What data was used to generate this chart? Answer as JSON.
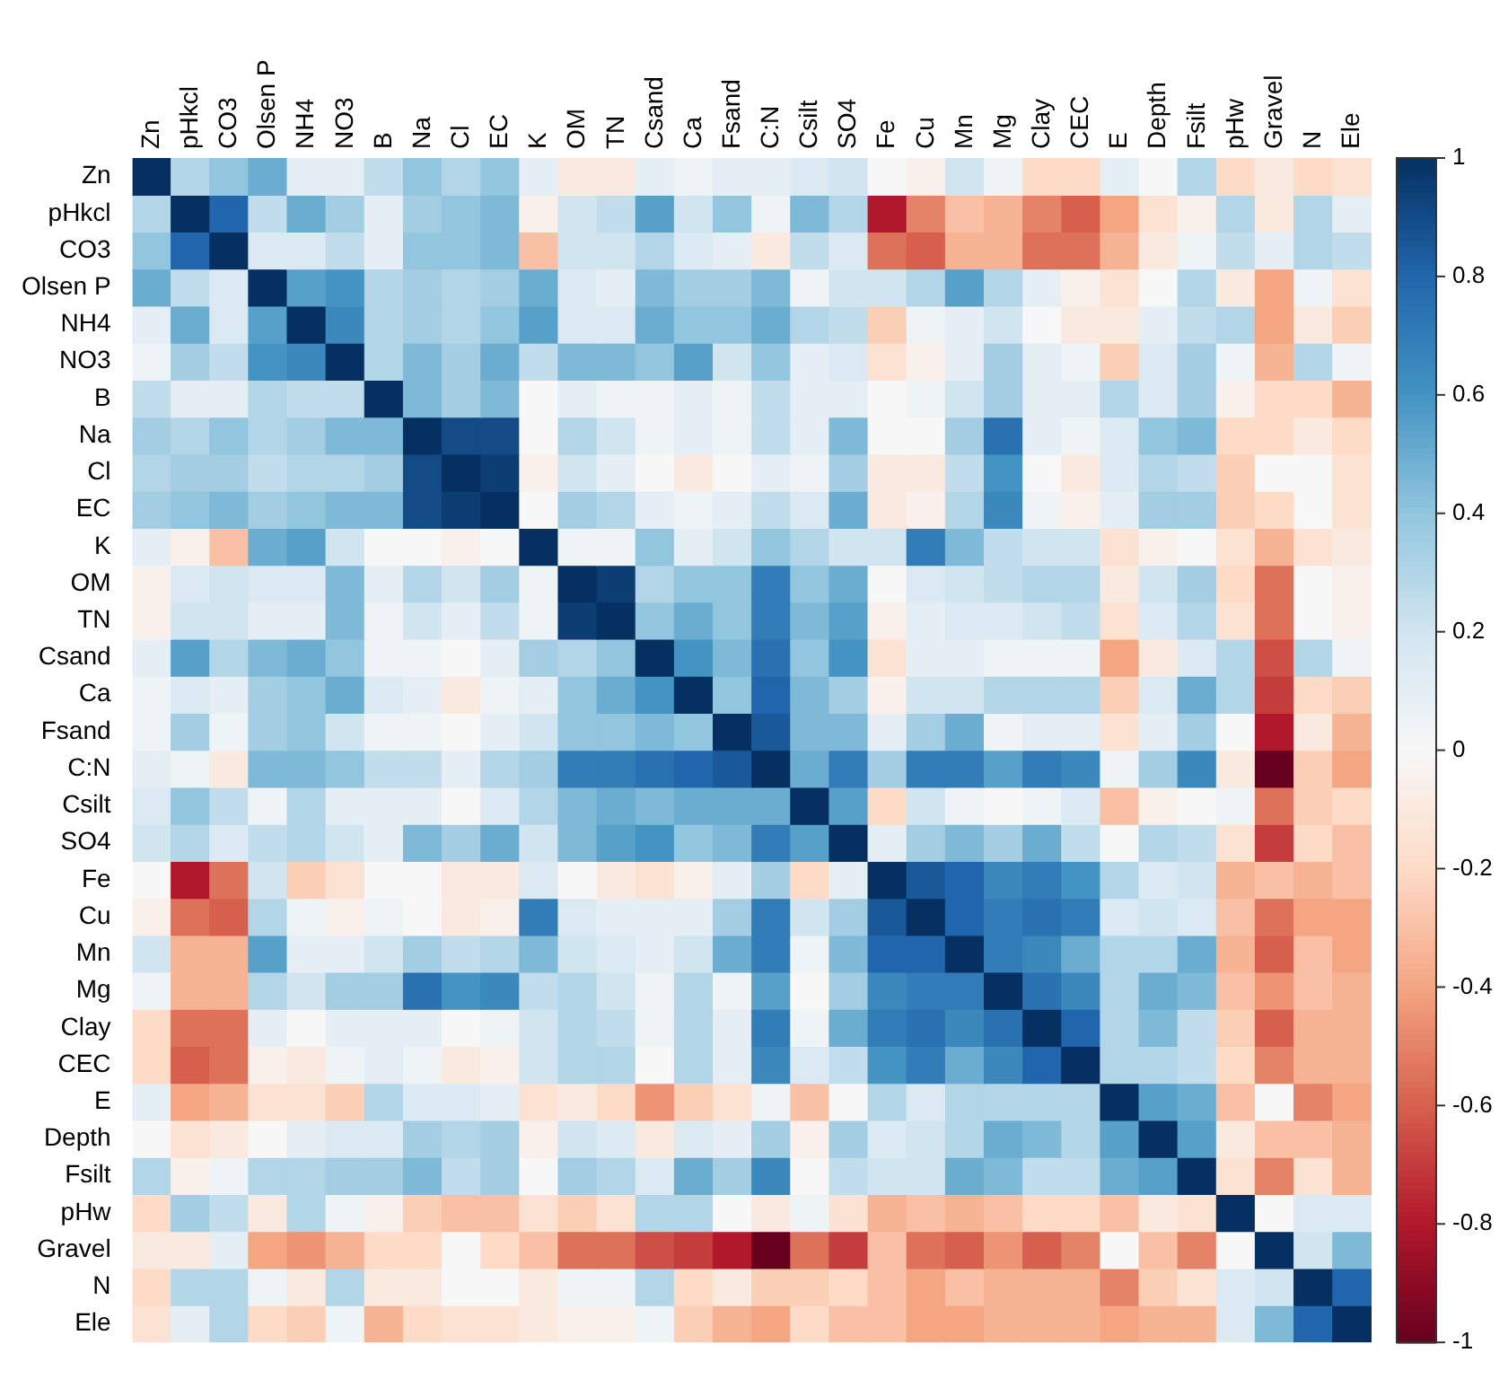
{
  "chart_data": {
    "type": "heatmap",
    "categories": [
      "Zn",
      "pHkcl",
      "CO3",
      "Olsen P",
      "NH4",
      "NO3",
      "B",
      "Na",
      "Cl",
      "EC",
      "K",
      "OM",
      "TN",
      "Csand",
      "Ca",
      "Fsand",
      "C:N",
      "Csilt",
      "SO4",
      "Fe",
      "Cu",
      "Mn",
      "Mg",
      "Clay",
      "CEC",
      "E",
      "Depth",
      "Fsilt",
      "pHw",
      "Gravel",
      "N",
      "Ele"
    ],
    "y_categories": [
      "Zn",
      "pHkcl",
      "CO3",
      "Olsen P",
      "NH4",
      "NO3",
      "B",
      "Na",
      "Cl",
      "EC",
      "K",
      "OM",
      "TN",
      "Csand",
      "Ca",
      "Fsand",
      "C:N",
      "Csilt",
      "SO4",
      "Fe",
      "Cu",
      "Mn",
      "Mg",
      "Clay",
      "CEC",
      "E",
      "Depth",
      "Fsilt",
      "pHw",
      "Gravel",
      "N",
      "Ele"
    ],
    "cells": [
      [
        1,
        0.3,
        0.4,
        0.5,
        0.1,
        0.1,
        0.25,
        0.4,
        0.3,
        0.4,
        0.1,
        -0.1,
        -0.1,
        0.1,
        0.05,
        0.1,
        0.1,
        0.15,
        0.2,
        0,
        -0.05,
        0.2,
        0.05,
        -0.2,
        -0.2,
        0.1,
        0,
        0.3,
        -0.2,
        -0.1,
        -0.2,
        -0.15
      ],
      [
        0.3,
        1,
        0.8,
        0.25,
        0.5,
        0.35,
        0.1,
        0.35,
        0.4,
        0.45,
        -0.05,
        0.2,
        0.25,
        0.55,
        0.2,
        0.4,
        0.05,
        0.45,
        0.3,
        -0.8,
        -0.5,
        -0.3,
        -0.35,
        -0.5,
        -0.6,
        -0.4,
        -0.15,
        -0.05,
        0.3,
        -0.1,
        0.3,
        0.1
      ],
      [
        0.4,
        0.8,
        1,
        0.15,
        0.15,
        0.25,
        0.1,
        0.4,
        0.4,
        0.45,
        -0.3,
        0.2,
        0.2,
        0.3,
        0.15,
        0.1,
        -0.1,
        0.25,
        0.15,
        -0.55,
        -0.6,
        -0.35,
        -0.35,
        -0.55,
        -0.55,
        -0.35,
        -0.1,
        0.05,
        0.25,
        0.1,
        0.3,
        0.25
      ],
      [
        0.5,
        0.25,
        0.15,
        1,
        0.55,
        0.6,
        0.3,
        0.35,
        0.3,
        0.35,
        0.5,
        0.15,
        0.1,
        0.45,
        0.35,
        0.35,
        0.45,
        0.05,
        0.2,
        0.2,
        0.3,
        0.55,
        0.3,
        0.1,
        -0.05,
        -0.15,
        0,
        0.3,
        -0.1,
        -0.4,
        0.05,
        -0.15
      ],
      [
        0.1,
        0.5,
        0.15,
        0.55,
        1,
        0.65,
        0.3,
        0.35,
        0.3,
        0.4,
        0.55,
        0.15,
        0.15,
        0.5,
        0.4,
        0.4,
        0.5,
        0.3,
        0.25,
        -0.25,
        0.05,
        0.1,
        0.2,
        0,
        -0.1,
        -0.1,
        0.1,
        0.25,
        0.3,
        -0.4,
        -0.1,
        -0.25
      ],
      [
        0.05,
        0.35,
        0.25,
        0.6,
        0.65,
        1,
        0.3,
        0.45,
        0.35,
        0.5,
        0.25,
        0.45,
        0.45,
        0.4,
        0.55,
        0.2,
        0.4,
        0.1,
        0.15,
        -0.15,
        -0.05,
        0.1,
        0.35,
        0.1,
        0.05,
        -0.25,
        0.15,
        0.35,
        0.05,
        -0.35,
        0.3,
        0.05
      ],
      [
        0.25,
        0.1,
        0.1,
        0.3,
        0.25,
        0.25,
        1,
        0.45,
        0.35,
        0.45,
        0,
        0.1,
        0.05,
        0.05,
        0.1,
        0.05,
        0.25,
        0.1,
        0.1,
        0,
        0.05,
        0.2,
        0.35,
        0.1,
        0.1,
        0.3,
        0.15,
        0.35,
        -0.05,
        -0.2,
        -0.2,
        -0.35
      ],
      [
        0.35,
        0.3,
        0.4,
        0.3,
        0.35,
        0.45,
        0.45,
        1,
        0.9,
        0.9,
        0,
        0.3,
        0.2,
        0.05,
        0.1,
        0.05,
        0.25,
        0.1,
        0.45,
        0,
        0,
        0.35,
        0.75,
        0.1,
        0.05,
        0.15,
        0.4,
        0.45,
        -0.2,
        -0.2,
        -0.1,
        -0.2
      ],
      [
        0.3,
        0.35,
        0.35,
        0.25,
        0.3,
        0.3,
        0.35,
        0.9,
        1,
        0.95,
        -0.05,
        0.2,
        0.1,
        0,
        -0.1,
        0,
        0.1,
        0.05,
        0.35,
        -0.1,
        -0.1,
        0.25,
        0.6,
        0,
        -0.1,
        0.15,
        0.3,
        0.25,
        -0.25,
        0,
        0,
        -0.15
      ],
      [
        0.35,
        0.4,
        0.45,
        0.35,
        0.4,
        0.45,
        0.45,
        0.9,
        0.95,
        1,
        0,
        0.35,
        0.3,
        0.1,
        0.05,
        0.1,
        0.25,
        0.15,
        0.5,
        -0.1,
        -0.05,
        0.3,
        0.65,
        0.05,
        -0.05,
        0.1,
        0.35,
        0.35,
        -0.25,
        -0.2,
        0,
        -0.15
      ],
      [
        0.1,
        -0.05,
        -0.3,
        0.5,
        0.55,
        0.2,
        0,
        0,
        -0.05,
        0,
        1,
        0.05,
        0.05,
        0.4,
        0.1,
        0.2,
        0.4,
        0.3,
        0.2,
        0.2,
        0.7,
        0.45,
        0.25,
        0.2,
        0.2,
        -0.15,
        -0.05,
        0,
        -0.15,
        -0.35,
        -0.15,
        -0.1
      ],
      [
        -0.05,
        0.15,
        0.2,
        0.15,
        0.15,
        0.45,
        0.1,
        0.3,
        0.2,
        0.35,
        0.05,
        1,
        0.95,
        0.3,
        0.4,
        0.4,
        0.7,
        0.4,
        0.5,
        0,
        0.15,
        0.2,
        0.25,
        0.3,
        0.3,
        -0.1,
        0.2,
        0.35,
        -0.2,
        -0.55,
        0,
        -0.05
      ],
      [
        -0.05,
        0.2,
        0.2,
        0.1,
        0.1,
        0.45,
        0.05,
        0.2,
        0.1,
        0.25,
        0.05,
        0.95,
        1,
        0.4,
        0.5,
        0.4,
        0.7,
        0.45,
        0.55,
        -0.05,
        0.1,
        0.15,
        0.15,
        0.2,
        0.25,
        -0.15,
        0.15,
        0.3,
        -0.15,
        -0.55,
        0,
        -0.05
      ],
      [
        0.1,
        0.55,
        0.3,
        0.45,
        0.5,
        0.4,
        0.05,
        0.05,
        0,
        0.1,
        0.35,
        0.3,
        0.4,
        1,
        0.6,
        0.45,
        0.75,
        0.4,
        0.6,
        -0.15,
        0.1,
        0.1,
        0.05,
        0.05,
        0.05,
        -0.4,
        -0.1,
        0.15,
        0.3,
        -0.65,
        0.3,
        0.05
      ],
      [
        0.05,
        0.15,
        0.1,
        0.35,
        0.4,
        0.5,
        0.15,
        0.1,
        -0.1,
        0.05,
        0.1,
        0.4,
        0.5,
        0.6,
        1,
        0.4,
        0.8,
        0.45,
        0.35,
        -0.05,
        0.2,
        0.2,
        0.3,
        0.3,
        0.3,
        -0.25,
        0.15,
        0.5,
        0.3,
        -0.7,
        -0.2,
        -0.25
      ],
      [
        0.05,
        0.35,
        0.05,
        0.35,
        0.4,
        0.2,
        0.05,
        0.05,
        0,
        0.1,
        0.2,
        0.4,
        0.4,
        0.45,
        0.4,
        1,
        0.85,
        0.45,
        0.45,
        0.1,
        0.35,
        0.5,
        0.05,
        0.1,
        0.1,
        -0.15,
        0.1,
        0.35,
        0,
        -0.8,
        -0.1,
        -0.35
      ],
      [
        0.1,
        0.05,
        -0.1,
        0.45,
        0.45,
        0.4,
        0.25,
        0.25,
        0.1,
        0.3,
        0.35,
        0.7,
        0.7,
        0.75,
        0.8,
        0.85,
        1,
        0.5,
        0.7,
        0.35,
        0.7,
        0.7,
        0.55,
        0.7,
        0.65,
        0.05,
        0.35,
        0.65,
        -0.1,
        -1,
        -0.25,
        -0.4
      ],
      [
        0.15,
        0.4,
        0.25,
        0.05,
        0.3,
        0.1,
        0.1,
        0.1,
        0,
        0.15,
        0.3,
        0.45,
        0.5,
        0.45,
        0.5,
        0.5,
        0.5,
        1,
        0.55,
        -0.2,
        0.2,
        0.05,
        0,
        0.05,
        0.15,
        -0.3,
        -0.05,
        0,
        0.05,
        -0.55,
        -0.25,
        -0.2
      ],
      [
        0.2,
        0.3,
        0.15,
        0.25,
        0.3,
        0.2,
        0.1,
        0.45,
        0.35,
        0.5,
        0.2,
        0.45,
        0.55,
        0.6,
        0.4,
        0.45,
        0.7,
        0.55,
        1,
        0.1,
        0.35,
        0.45,
        0.35,
        0.5,
        0.25,
        0,
        0.3,
        0.25,
        -0.15,
        -0.7,
        -0.2,
        -0.3
      ],
      [
        0,
        -0.8,
        -0.55,
        0.2,
        -0.25,
        -0.15,
        0,
        0,
        -0.1,
        -0.1,
        0.15,
        0,
        -0.1,
        -0.15,
        -0.05,
        0.1,
        0.35,
        -0.2,
        0.1,
        1,
        0.85,
        0.8,
        0.65,
        0.7,
        0.6,
        0.3,
        0.15,
        0.2,
        -0.35,
        -0.3,
        -0.35,
        -0.3
      ],
      [
        -0.05,
        -0.55,
        -0.6,
        0.3,
        0.05,
        -0.05,
        0.05,
        0,
        -0.1,
        -0.05,
        0.7,
        0.15,
        0.1,
        0.1,
        0.1,
        0.35,
        0.7,
        0.2,
        0.35,
        0.85,
        1,
        0.8,
        0.7,
        0.75,
        0.7,
        0.15,
        0.2,
        0.15,
        -0.3,
        -0.55,
        -0.4,
        -0.4
      ],
      [
        0.2,
        -0.35,
        -0.35,
        0.55,
        0.1,
        0.1,
        0.2,
        0.35,
        0.25,
        0.3,
        0.45,
        0.2,
        0.15,
        0.1,
        0.2,
        0.5,
        0.7,
        0.05,
        0.45,
        0.8,
        0.8,
        1,
        0.7,
        0.65,
        0.5,
        0.3,
        0.3,
        0.5,
        -0.35,
        -0.6,
        -0.3,
        -0.4
      ],
      [
        0.05,
        -0.35,
        -0.35,
        0.3,
        0.2,
        0.35,
        0.35,
        0.75,
        0.6,
        0.65,
        0.25,
        0.3,
        0.2,
        0.05,
        0.3,
        0.05,
        0.55,
        0,
        0.35,
        0.65,
        0.7,
        0.7,
        1,
        0.75,
        0.65,
        0.3,
        0.5,
        0.45,
        -0.3,
        -0.45,
        -0.3,
        -0.35
      ],
      [
        -0.2,
        -0.55,
        -0.55,
        0.1,
        0,
        0.1,
        0.1,
        0.1,
        0,
        0.05,
        0.2,
        0.3,
        0.25,
        0.05,
        0.3,
        0.1,
        0.7,
        0.05,
        0.5,
        0.7,
        0.75,
        0.65,
        0.75,
        1,
        0.8,
        0.3,
        0.45,
        0.25,
        -0.25,
        -0.6,
        -0.35,
        -0.35
      ],
      [
        -0.2,
        -0.6,
        -0.55,
        -0.05,
        -0.1,
        0.05,
        0.1,
        0.05,
        -0.1,
        -0.05,
        0.2,
        0.3,
        0.3,
        0,
        0.3,
        0.1,
        0.65,
        0.15,
        0.25,
        0.6,
        0.7,
        0.5,
        0.65,
        0.8,
        1,
        0.3,
        0.3,
        0.25,
        -0.2,
        -0.5,
        -0.35,
        -0.35
      ],
      [
        0.1,
        -0.4,
        -0.35,
        -0.15,
        -0.15,
        -0.25,
        0.3,
        0.15,
        0.15,
        0.1,
        -0.15,
        -0.1,
        -0.2,
        -0.45,
        -0.25,
        -0.15,
        0.05,
        -0.3,
        0,
        0.3,
        0.15,
        0.3,
        0.3,
        0.3,
        0.3,
        1,
        0.55,
        0.5,
        -0.3,
        0,
        -0.5,
        -0.4
      ],
      [
        0,
        -0.15,
        -0.1,
        0,
        0.1,
        0.15,
        0.15,
        0.35,
        0.3,
        0.35,
        -0.05,
        0.2,
        0.15,
        -0.1,
        0.15,
        0.1,
        0.35,
        -0.05,
        0.35,
        0.15,
        0.2,
        0.3,
        0.5,
        0.45,
        0.3,
        0.55,
        1,
        0.55,
        -0.1,
        -0.3,
        -0.3,
        -0.35
      ],
      [
        0.3,
        -0.05,
        0.05,
        0.3,
        0.3,
        0.35,
        0.35,
        0.45,
        0.25,
        0.35,
        0,
        0.35,
        0.3,
        0.15,
        0.5,
        0.35,
        0.65,
        0,
        0.25,
        0.2,
        0.2,
        0.5,
        0.45,
        0.25,
        0.25,
        0.5,
        0.55,
        1,
        -0.15,
        -0.5,
        -0.15,
        -0.35
      ],
      [
        -0.2,
        0.35,
        0.25,
        -0.1,
        0.3,
        0.05,
        -0.05,
        -0.25,
        -0.3,
        -0.3,
        -0.15,
        -0.25,
        -0.15,
        0.3,
        0.3,
        0,
        -0.1,
        0.05,
        -0.15,
        -0.35,
        -0.3,
        -0.35,
        -0.3,
        -0.2,
        -0.2,
        -0.3,
        -0.1,
        -0.15,
        1,
        0,
        0.15,
        0.15
      ],
      [
        -0.1,
        -0.1,
        0.1,
        -0.4,
        -0.45,
        -0.35,
        -0.2,
        -0.2,
        0,
        -0.2,
        -0.3,
        -0.55,
        -0.55,
        -0.65,
        -0.7,
        -0.8,
        -1,
        -0.55,
        -0.7,
        -0.3,
        -0.55,
        -0.6,
        -0.45,
        -0.6,
        -0.5,
        0,
        -0.3,
        -0.5,
        0,
        1,
        0.2,
        0.45
      ],
      [
        -0.2,
        0.3,
        0.3,
        0.05,
        -0.1,
        0.3,
        -0.1,
        -0.1,
        0,
        0,
        -0.1,
        0.05,
        0.05,
        0.3,
        -0.2,
        -0.1,
        -0.25,
        -0.25,
        -0.2,
        -0.3,
        -0.4,
        -0.3,
        -0.35,
        -0.35,
        -0.35,
        -0.5,
        -0.25,
        -0.15,
        0.15,
        0.2,
        1,
        0.8
      ],
      [
        -0.15,
        0.1,
        0.3,
        -0.2,
        -0.25,
        0.05,
        -0.35,
        -0.2,
        -0.15,
        -0.15,
        -0.1,
        -0.05,
        -0.05,
        0.05,
        -0.25,
        -0.35,
        -0.4,
        -0.2,
        -0.3,
        -0.3,
        -0.4,
        -0.4,
        -0.35,
        -0.35,
        -0.35,
        -0.4,
        -0.35,
        -0.35,
        0.15,
        0.45,
        0.8,
        1
      ]
    ],
    "clim": [
      -1,
      1
    ],
    "cticks": [
      -1,
      -0.8,
      -0.6,
      -0.4,
      -0.2,
      0,
      0.2,
      0.4,
      0.6,
      0.8,
      1
    ]
  }
}
